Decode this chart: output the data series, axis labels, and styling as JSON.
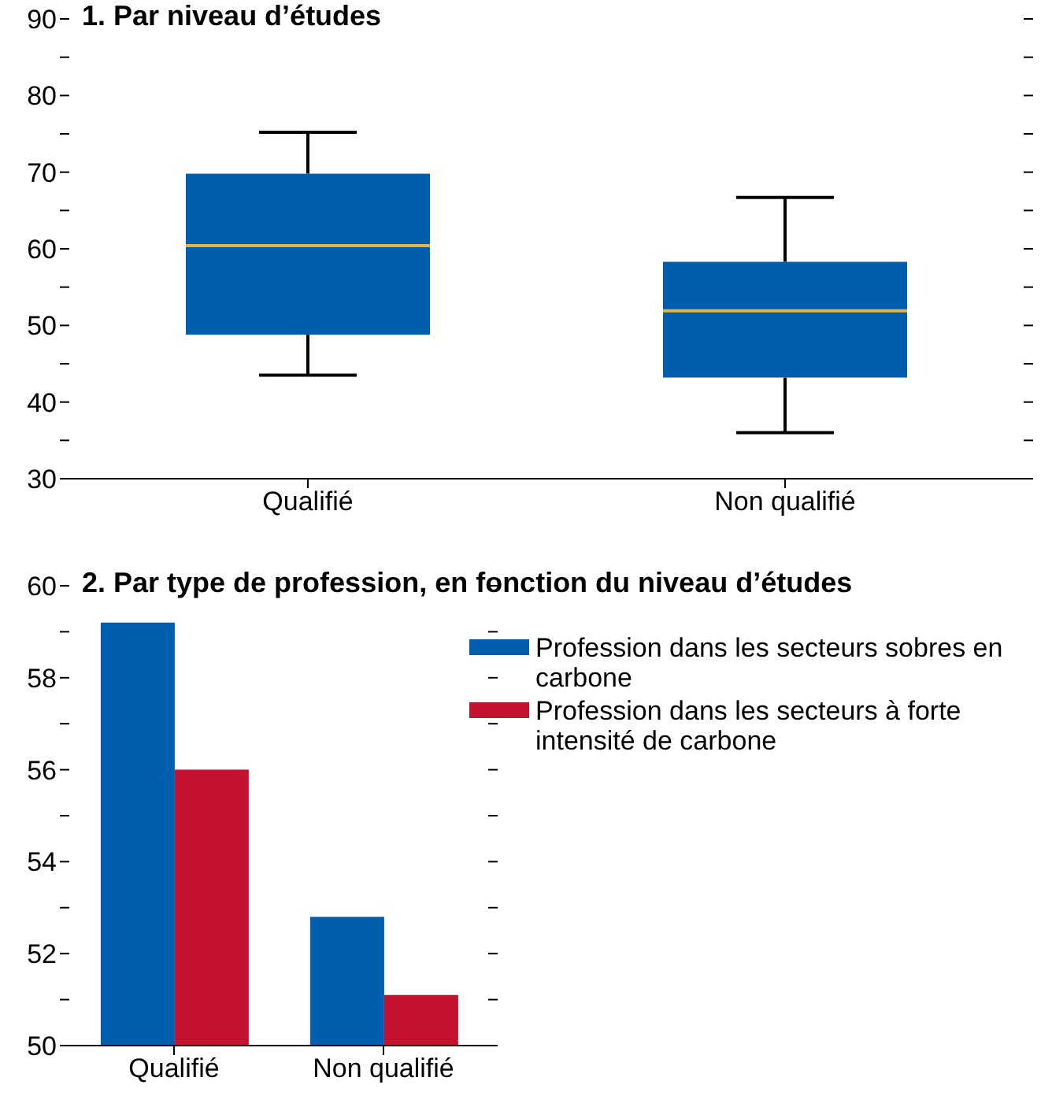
{
  "chart_data": [
    {
      "type": "box",
      "title": "1. Par niveau d’études",
      "categories": [
        "Qualifié",
        "Non qualifié"
      ],
      "series": [
        {
          "color": "#005eae",
          "boxes": [
            {
              "low": 43.5,
              "q1": 48.8,
              "median": 60.4,
              "q3": 69.8,
              "high": 75.2
            },
            {
              "low": 36,
              "q1": 43.2,
              "median": 51.9,
              "q3": 58.3,
              "high": 66.7
            }
          ]
        }
      ],
      "ylim": [
        30,
        90
      ],
      "yticks": [
        30,
        {
          "value": 35,
          "label": null
        },
        40,
        {
          "value": 45,
          "label": null
        },
        50,
        {
          "value": 55,
          "label": null
        },
        60,
        {
          "value": 65,
          "label": null
        },
        70,
        {
          "value": 75,
          "label": null
        },
        80,
        {
          "value": 85,
          "label": null
        },
        90
      ],
      "grid": false
    },
    {
      "type": "bar",
      "title": "2. Par type de profession, en fonction du niveau d’études",
      "categories": [
        "Qualifié",
        "Non qualifié"
      ],
      "series": [
        {
          "name": "Profession dans les secteurs sobres en carbone",
          "color": "#005eae",
          "values": [
            59.2,
            52.8
          ]
        },
        {
          "name": "Profession dans les secteurs à forte intensité de carbone",
          "color": "#c41230",
          "values": [
            56.0,
            51.1
          ]
        }
      ],
      "ylim": [
        50,
        60
      ],
      "yticks": [
        50,
        {
          "value": 51,
          "label": null
        },
        52,
        {
          "value": 53,
          "label": null
        },
        54,
        {
          "value": 55,
          "label": null
        },
        56,
        {
          "value": 57,
          "label": null
        },
        58,
        {
          "value": 59,
          "label": null
        },
        60
      ],
      "grid": false,
      "legend": "top right"
    }
  ]
}
